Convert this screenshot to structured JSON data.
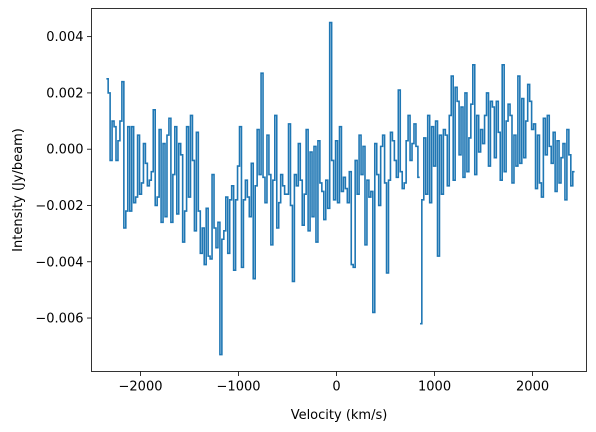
{
  "chart_data": {
    "type": "line",
    "drawstyle": "steps-mid",
    "xlabel": "Velocity (km/s)",
    "ylabel": "Intensity (Jy/beam)",
    "xlim": [
      -2500,
      2550
    ],
    "ylim": [
      -0.0079,
      0.005
    ],
    "x_ticks": [
      -2000,
      -1000,
      0,
      1000,
      2000
    ],
    "x_tick_labels": [
      "−2000",
      "−1000",
      "0",
      "1000",
      "2000"
    ],
    "y_ticks": [
      -0.006,
      -0.004,
      -0.002,
      0.0,
      0.002,
      0.004
    ],
    "y_tick_labels": [
      "−0.006",
      "−0.004",
      "−0.002",
      "0.000",
      "0.002",
      "0.004"
    ],
    "grid": false,
    "line_color": "#1f77b4",
    "series": [
      {
        "x_start": -2340,
        "x_step": 20,
        "values": [
          0.0025,
          0.002,
          -0.0004,
          0.001,
          0.0008,
          -0.0004,
          0.0003,
          0.001,
          0.0024,
          -0.0028,
          -0.0022,
          0.0008,
          -0.0022,
          0.0008,
          -0.0019,
          -0.0017,
          0.0005,
          -0.0016,
          -0.0012,
          0.0002,
          -0.0005,
          -0.0013,
          -0.0011,
          -0.0008,
          0.0014,
          -0.002,
          -0.0017,
          0.0007,
          -0.0026,
          0.0002,
          -0.0024,
          0.0005,
          0.0011,
          -0.0026,
          -0.0009,
          0.0008,
          -0.0023,
          0.0002,
          -0.0002,
          -0.0033,
          -0.0022,
          0.0008,
          -0.0017,
          0.0012,
          -0.0004,
          -0.0029,
          0.0006,
          -0.0022,
          -0.0037,
          -0.0028,
          -0.0041,
          -0.0021,
          -0.0038,
          -0.0039,
          -0.0009,
          -0.0028,
          -0.0035,
          -0.0026,
          -0.0073,
          -0.0032,
          -0.0029,
          -0.0017,
          -0.0037,
          -0.0018,
          -0.0013,
          -0.0043,
          -0.0018,
          -0.0006,
          0.0008,
          -0.0042,
          -0.0018,
          -0.0011,
          -0.0017,
          -0.0024,
          -0.0005,
          -0.0046,
          -0.0013,
          0.0007,
          -0.0009,
          0.0027,
          -0.001,
          -0.0019,
          0.0005,
          -0.0009,
          -0.0034,
          -0.0011,
          0.0012,
          -0.0028,
          -0.0019,
          -0.0009,
          -0.0013,
          -0.0016,
          -0.0016,
          0.0009,
          -0.002,
          -0.0047,
          -0.0009,
          -0.0013,
          0.0002,
          -0.0011,
          -0.0027,
          -0.0016,
          0.0007,
          -0.0029,
          -0.0001,
          -0.0024,
          0.0001,
          -0.0033,
          0.0003,
          -0.0012,
          -0.0015,
          -0.0025,
          -0.0011,
          -0.0021,
          0.0045,
          -0.0004,
          -0.0018,
          0.0003,
          -0.0019,
          0.0008,
          -0.0015,
          -0.001,
          -0.0014,
          -0.0019,
          -0.0008,
          -0.0041,
          -0.0042,
          -0.0004,
          -0.0016,
          0.0005,
          -0.0009,
          0.0001,
          -0.0034,
          -0.0011,
          -0.0017,
          -0.0015,
          -0.0058,
          0.0002,
          -0.0009,
          -0.002,
          0.0001,
          0.0005,
          -0.0012,
          -0.0044,
          -0.0011,
          0.0006,
          0.0003,
          -0.0004,
          -0.001,
          0.0021,
          -0.0008,
          -0.0014,
          -0.0012,
          0.0003,
          0.0012,
          -0.0004,
          0.0002,
          0.0009,
          0.0001,
          -0.001
        ]
      },
      {
        "x_start": 860,
        "x_step": 20,
        "values": [
          -0.0062,
          -0.0018,
          0.0004,
          -0.0016,
          0.0012,
          -0.0019,
          0.0008,
          -0.0006,
          0.001,
          -0.0038,
          0.0005,
          -0.0016,
          0.0007,
          0.0005,
          -0.0013,
          0.0012,
          0.0026,
          -0.0011,
          0.0022,
          0.0017,
          -0.0002,
          0.0015,
          -0.001,
          0.002,
          -0.0008,
          0.0004,
          0.0016,
          0.003,
          -0.0009,
          0.0012,
          -0.0001,
          0.0007,
          0.0002,
          0.0012,
          0.002,
          -0.0006,
          0.0017,
          0.0015,
          -0.0003,
          0.0017,
          0.0006,
          -0.0011,
          0.003,
          -0.0008,
          0.001,
          0.0016,
          0.0012,
          -0.0012,
          0.0005,
          -0.0006,
          0.0026,
          -0.0005,
          0.0018,
          -0.0003,
          0.001,
          0.0023,
          0.0017,
          0.0007,
          0.0009,
          -0.0014,
          0.0005,
          -0.0012,
          -0.0017,
          0.0011,
          -0.0002,
          0.0012,
          0.0001,
          -0.0005,
          0.0006,
          -0.0015,
          0.0003,
          -0.0012,
          -0.0003,
          0.0002,
          -0.0018,
          0.0007,
          -0.0002,
          -0.0013,
          -0.0008
        ]
      }
    ]
  }
}
